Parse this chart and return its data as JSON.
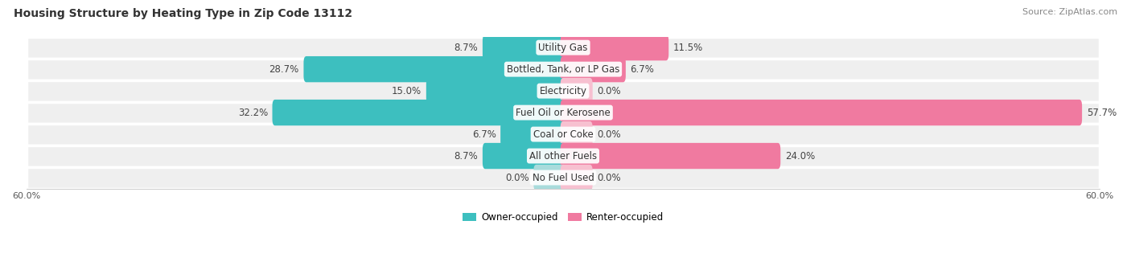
{
  "title": "Housing Structure by Heating Type in Zip Code 13112",
  "source": "Source: ZipAtlas.com",
  "categories": [
    "Utility Gas",
    "Bottled, Tank, or LP Gas",
    "Electricity",
    "Fuel Oil or Kerosene",
    "Coal or Coke",
    "All other Fuels",
    "No Fuel Used"
  ],
  "owner_values": [
    8.7,
    28.7,
    15.0,
    32.2,
    6.7,
    8.7,
    0.0
  ],
  "renter_values": [
    11.5,
    6.7,
    0.0,
    57.7,
    0.0,
    24.0,
    0.0
  ],
  "owner_color": "#3DBFBF",
  "renter_color": "#F07AA0",
  "owner_stub_color": "#A8DCDC",
  "renter_stub_color": "#F7C0D0",
  "row_bg_color": "#EFEFEF",
  "row_bg_alt": "#E8E8E8",
  "axis_max": 60.0,
  "stub_size": 3.0,
  "title_fontsize": 10,
  "label_fontsize": 8.5,
  "value_fontsize": 8.5,
  "tick_fontsize": 8,
  "legend_fontsize": 8.5,
  "source_fontsize": 8
}
